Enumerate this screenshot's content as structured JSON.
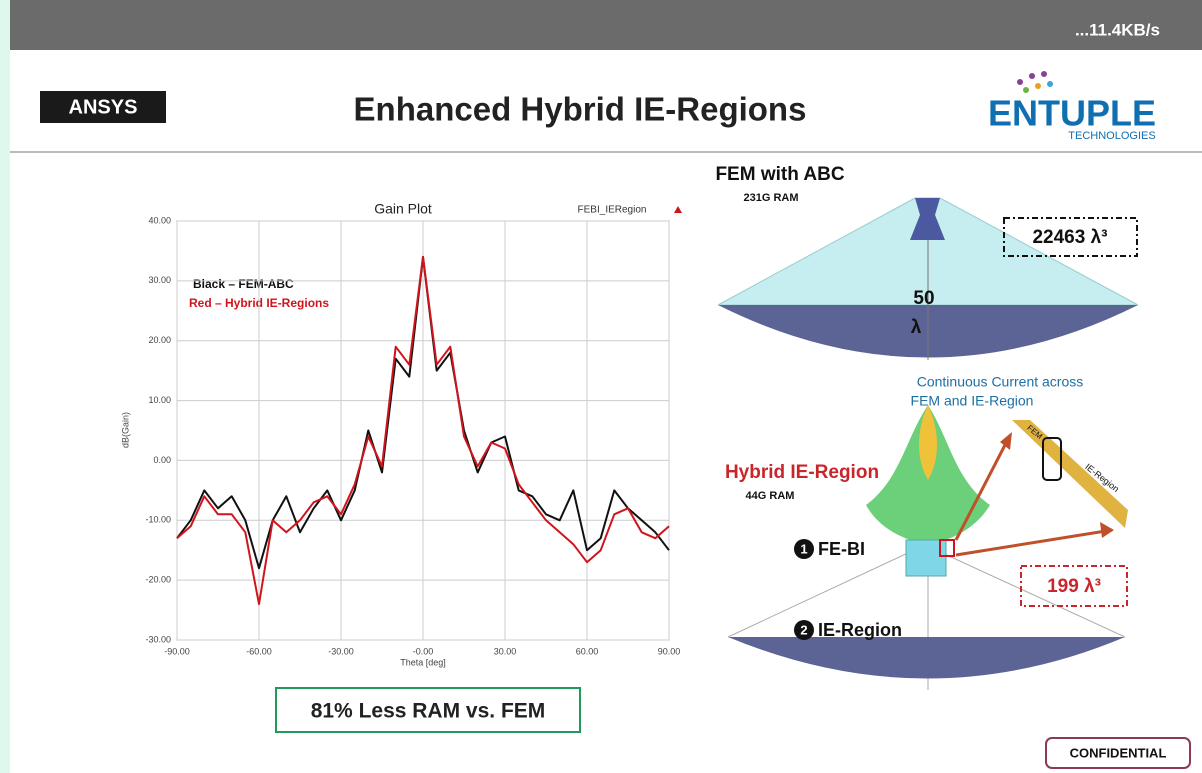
{
  "status_bar": {
    "speed": "...11.4KB/s"
  },
  "header": {
    "logo_left": "ANSYS",
    "title": "Enhanced Hybrid IE-Regions",
    "logo_right": "ENTUPLE",
    "logo_right_sub": "TECHNOLOGIES"
  },
  "chart_data": {
    "type": "line",
    "title": "Gain Plot",
    "legend_label": "FEBI_IERegion",
    "x_label": "Theta [deg]",
    "y_label": "dB(Gain)",
    "annotations": [
      "Black – FEM-ABC",
      "Red – Hybrid IE-Regions"
    ],
    "x": [
      -90,
      -85,
      -80,
      -75,
      -70,
      -65,
      -60,
      -55,
      -50,
      -45,
      -40,
      -35,
      -30,
      -25,
      -20,
      -15,
      -10,
      -5,
      0,
      5,
      10,
      15,
      20,
      25,
      30,
      35,
      40,
      45,
      50,
      55,
      60,
      65,
      70,
      75,
      80,
      85,
      90
    ],
    "series": [
      {
        "name": "FEM-ABC",
        "color": "#111111",
        "values": [
          -13,
          -10,
          -5,
          -8,
          -6,
          -10,
          -18,
          -10,
          -6,
          -12,
          -8,
          -5,
          -10,
          -5,
          5,
          -2,
          17,
          14,
          34,
          15,
          18,
          5,
          -2,
          3,
          4,
          -5,
          -6,
          -9,
          -10,
          -5,
          -15,
          -13,
          -5,
          -8,
          -10,
          -12,
          -15
        ]
      },
      {
        "name": "Hybrid IE-Regions",
        "color": "#d0141c",
        "values": [
          -13,
          -11,
          -6,
          -9,
          -9,
          -12,
          -24,
          -10,
          -12,
          -10,
          -7,
          -6,
          -9,
          -4,
          4,
          -1,
          19,
          16,
          34,
          16,
          19,
          4,
          -1,
          3,
          2,
          -4,
          -7,
          -10,
          -12,
          -14,
          -17,
          -15,
          -9,
          -8,
          -12,
          -13,
          -11
        ]
      }
    ],
    "xlim": [
      -90,
      90
    ],
    "xticks": [
      {
        "value": -90,
        "label": "-90.00"
      },
      {
        "value": -60,
        "label": "-60.00"
      },
      {
        "value": -30,
        "label": "-30.00"
      },
      {
        "value": 0,
        "label": "-0.00"
      },
      {
        "value": 30,
        "label": "30.00"
      },
      {
        "value": 60,
        "label": "60.00"
      },
      {
        "value": 90,
        "label": "90.00"
      }
    ],
    "ylim": [
      -30,
      40
    ],
    "yticks": [
      {
        "value": -30,
        "label": "-30.00"
      },
      {
        "value": -20,
        "label": "-20.00"
      },
      {
        "value": -10,
        "label": "-10.00"
      },
      {
        "value": 0,
        "label": "0.00"
      },
      {
        "value": 10,
        "label": "10.00"
      },
      {
        "value": 20,
        "label": "20.00"
      },
      {
        "value": 30,
        "label": "30.00"
      },
      {
        "value": 40,
        "label": "40.00"
      }
    ],
    "grid": true
  },
  "callout": "81% Less RAM vs. FEM",
  "diagram": {
    "fem_title": "FEM with ABC",
    "fem_ram": "231G RAM",
    "fem_volume": "22463 λ³",
    "size_num": "50",
    "size_unit": "λ",
    "current_note": [
      "Continuous Current across",
      "FEM and IE-Region"
    ],
    "strip_fem": "FEM",
    "strip_ie": "IE-Region",
    "hybrid_title": "Hybrid IE-Region",
    "hybrid_ram": "44G RAM",
    "hybrid_volume": "199 λ³",
    "step1_num": "1",
    "step1": "FE-BI",
    "step2_num": "2",
    "step2": "IE-Region"
  },
  "footer": {
    "confidential": "CONFIDENTIAL"
  }
}
